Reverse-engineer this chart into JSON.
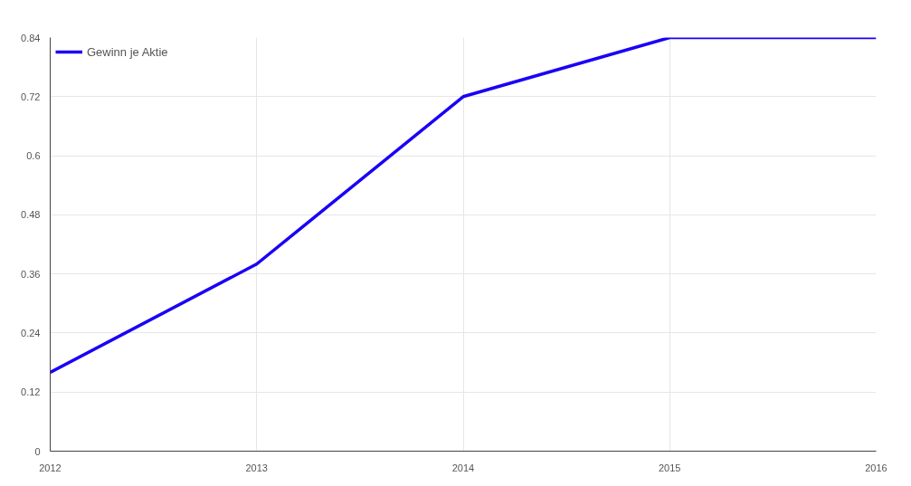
{
  "chart_data": {
    "type": "line",
    "x": [
      2012,
      2013,
      2014,
      2015,
      2016
    ],
    "series": [
      {
        "name": "Gewinn je Aktie",
        "color": "#1a00f5",
        "values": [
          0.16,
          0.38,
          0.72,
          0.84,
          0.84
        ]
      }
    ],
    "xlim": [
      2012,
      2016
    ],
    "xticks": [
      2012,
      2013,
      2014,
      2015,
      2016
    ],
    "ylim": [
      0,
      0.84
    ],
    "yticks": [
      0,
      0.12,
      0.24,
      0.36,
      0.48,
      0.6,
      0.72,
      0.84
    ],
    "grid": true,
    "legend": "top left",
    "marker": "none",
    "line_style": "solid"
  }
}
